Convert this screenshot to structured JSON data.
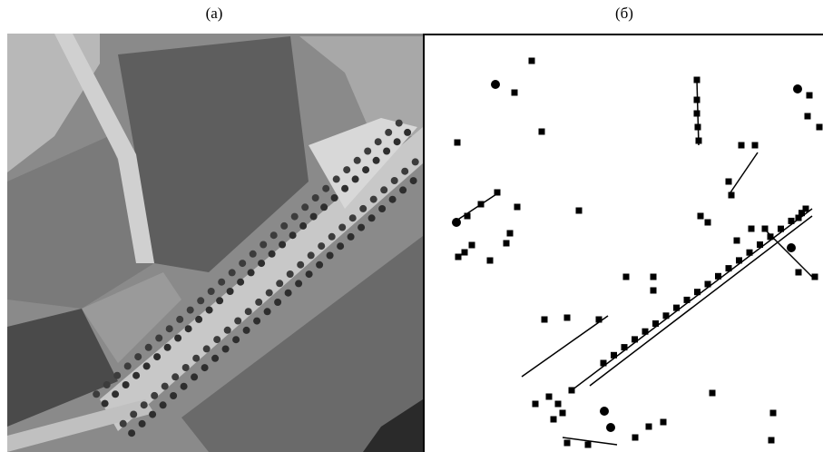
{
  "panels": [
    {
      "label": "(а)"
    },
    {
      "label": "(б)"
    }
  ]
}
